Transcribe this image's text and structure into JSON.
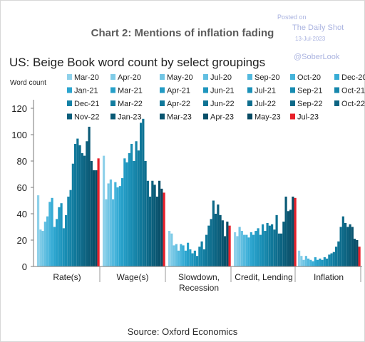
{
  "watermark": {
    "posted": "Posted on",
    "site": "The Daily Shot",
    "date": "13-Jul-2023",
    "handle": "@SoberLook"
  },
  "chart_data": {
    "type": "bar",
    "title": "Chart 2: Mentions of inflation fading",
    "subtitle": "US: Beige Book word count by select groupings",
    "ylabel": "Word count",
    "source": "Source: Oxford Economics",
    "ylim": [
      0,
      130
    ],
    "yticks": [
      "0",
      "20",
      "40",
      "60",
      "80",
      "100",
      "120"
    ],
    "grid": false,
    "legend_position": "top",
    "categories": [
      "Rate(s)",
      "Wage(s)",
      "Slowdown, Recession",
      "Credit, Lending",
      "Inflation"
    ],
    "dates": [
      "Mar-20",
      "Apr-20",
      "May-20",
      "Jul-20",
      "Sep-20",
      "Oct-20",
      "Dec-20",
      "Jan-21",
      "Mar-21",
      "Apr-21",
      "Jun-21",
      "Jul-21",
      "Sep-21",
      "Oct-21",
      "Dec-21",
      "Mar-22",
      "Apr-22",
      "Jun-22",
      "Jul-22",
      "Sep-22",
      "Oct-22",
      "Nov-22",
      "Jan-23",
      "Mar-23",
      "Apr-23",
      "May-23",
      "Jul-23"
    ],
    "colors": [
      "#8fd1ea",
      "#7fcbe7",
      "#71c5e4",
      "#62bfe1",
      "#53b9de",
      "#45b3da",
      "#37acd5",
      "#2ca5cf",
      "#27a0c9",
      "#239bc4",
      "#1f96be",
      "#1b91b8",
      "#188cb2",
      "#1687ac",
      "#1482a6",
      "#127da0",
      "#10789a",
      "#0f7394",
      "#0e6e8e",
      "#0d6988",
      "#0c6482",
      "#0b5f7c",
      "#0a5a76",
      "#0a5570",
      "#09506a",
      "#084b64",
      "#e8202a"
    ],
    "series": [
      {
        "name": "Mar-20",
        "values": [
          54,
          84,
          27,
          26,
          12
        ]
      },
      {
        "name": "Apr-20",
        "values": [
          28,
          51,
          25,
          23,
          8
        ]
      },
      {
        "name": "May-20",
        "values": [
          27,
          63,
          16,
          30,
          5
        ]
      },
      {
        "name": "Jul-20",
        "values": [
          34,
          66,
          17,
          27,
          8
        ]
      },
      {
        "name": "Sep-20",
        "values": [
          38,
          51,
          12,
          24,
          6
        ]
      },
      {
        "name": "Oct-20",
        "values": [
          49,
          64,
          17,
          24,
          5
        ]
      },
      {
        "name": "Dec-20",
        "values": [
          52,
          60,
          16,
          22,
          4
        ]
      },
      {
        "name": "Jan-21",
        "values": [
          30,
          61,
          12,
          26,
          7
        ]
      },
      {
        "name": "Mar-21",
        "values": [
          36,
          67,
          18,
          24,
          5
        ]
      },
      {
        "name": "Apr-21",
        "values": [
          45,
          82,
          13,
          27,
          6
        ]
      },
      {
        "name": "Jun-21",
        "values": [
          48,
          79,
          10,
          29,
          5
        ]
      },
      {
        "name": "Jul-21",
        "values": [
          29,
          86,
          12,
          24,
          7
        ]
      },
      {
        "name": "Sep-21",
        "values": [
          39,
          93,
          8,
          32,
          6
        ]
      },
      {
        "name": "Oct-21",
        "values": [
          53,
          80,
          15,
          27,
          9
        ]
      },
      {
        "name": "Dec-21",
        "values": [
          58,
          95,
          19,
          33,
          10
        ]
      },
      {
        "name": "Mar-22",
        "values": [
          78,
          88,
          13,
          31,
          11
        ]
      },
      {
        "name": "Apr-22",
        "values": [
          93,
          109,
          24,
          32,
          15
        ]
      },
      {
        "name": "Jun-22",
        "values": [
          97,
          112,
          31,
          28,
          19
        ]
      },
      {
        "name": "Jul-22",
        "values": [
          92,
          80,
          36,
          39,
          30
        ]
      },
      {
        "name": "Sep-22",
        "values": [
          86,
          65,
          50,
          25,
          38
        ]
      },
      {
        "name": "Oct-22",
        "values": [
          84,
          53,
          40,
          25,
          33
        ]
      },
      {
        "name": "Nov-22",
        "values": [
          95,
          65,
          47,
          34,
          30
        ]
      },
      {
        "name": "Jan-23",
        "values": [
          106,
          62,
          39,
          53,
          32
        ]
      },
      {
        "name": "Mar-23",
        "values": [
          80,
          53,
          35,
          42,
          30
        ]
      },
      {
        "name": "Apr-23",
        "values": [
          73,
          65,
          23,
          43,
          21
        ]
      },
      {
        "name": "May-23",
        "values": [
          73,
          59,
          34,
          53,
          20
        ]
      },
      {
        "name": "Jul-23",
        "values": [
          82,
          56,
          31,
          52,
          15
        ]
      }
    ]
  }
}
